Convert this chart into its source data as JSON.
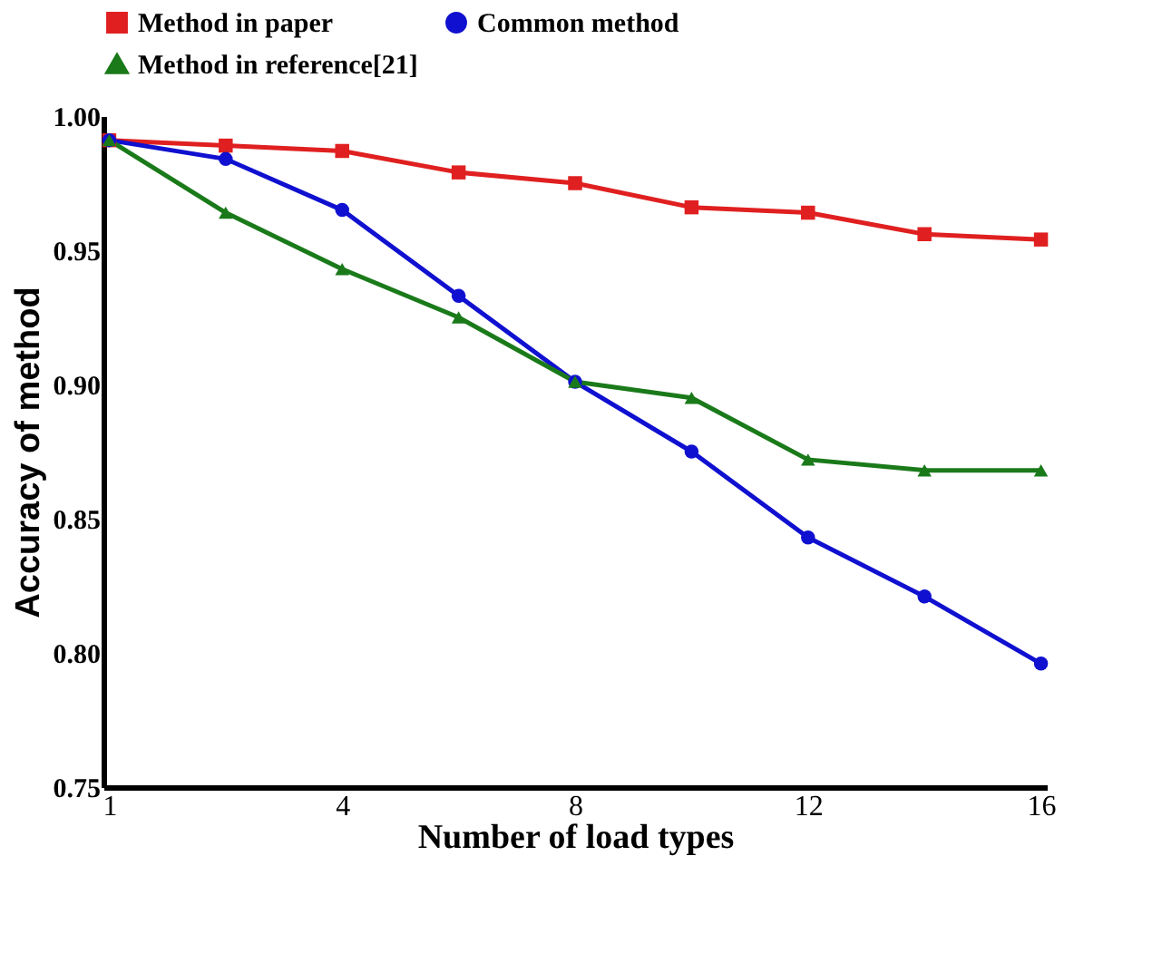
{
  "chart_data": {
    "type": "line",
    "xlabel": "Number of load types",
    "ylabel": "Accuracy of method",
    "categories": [
      "1",
      null,
      "4",
      null,
      "8",
      null,
      "12",
      null,
      "16"
    ],
    "ylim": [
      0.75,
      1.0
    ],
    "yticks": [
      0.75,
      {
        "value": 0.8,
        "label": "0.80"
      },
      0.85,
      {
        "value": 0.9,
        "label": "0.90"
      },
      0.95,
      {
        "value": 1,
        "label": "1.00"
      }
    ],
    "grid": false,
    "legend": "top",
    "series": [
      {
        "name": "Method in paper",
        "color": "#e02020",
        "marker": "square",
        "values": [
          0.991,
          0.989,
          0.987,
          0.979,
          0.975,
          0.966,
          0.964,
          0.956,
          0.954
        ]
      },
      {
        "name": "Common method",
        "color": "#1010d0",
        "marker": "circle",
        "values": [
          0.991,
          0.984,
          0.965,
          0.933,
          0.901,
          0.875,
          0.843,
          0.821,
          0.796
        ]
      },
      {
        "name": "Method in reference[21]",
        "color": "#1a7a1a",
        "marker": "triangle",
        "values": [
          0.991,
          0.964,
          0.943,
          0.925,
          0.901,
          0.895,
          0.872,
          0.868,
          0.868
        ]
      }
    ]
  }
}
